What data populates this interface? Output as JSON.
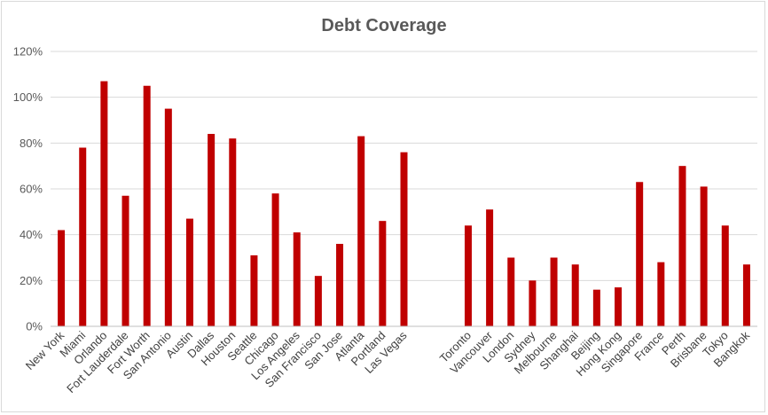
{
  "chart_data": {
    "type": "bar",
    "title": "Debt Coverage",
    "xlabel": "",
    "ylabel": "",
    "ylim": [
      0,
      1.2
    ],
    "yticks": [
      0,
      0.2,
      0.4,
      0.6,
      0.8,
      1.0,
      1.2
    ],
    "ytick_labels": [
      "0%",
      "20%",
      "40%",
      "60%",
      "80%",
      "100%",
      "120%"
    ],
    "grid": true,
    "legend": "none",
    "color": "#c00000",
    "categories": [
      "New York",
      "Miami",
      "Orlando",
      "Fort Lauderdale",
      "Fort Worth",
      "San Antonio",
      "Austin",
      "Dallas",
      "Houston",
      "Seattle",
      "Chicago",
      "Los Angeles",
      "San Francisco",
      "San Jose",
      "Atlanta",
      "Portland",
      "Las Vegas",
      "",
      "",
      "Toronto",
      "Vancouver",
      "London",
      "Sydney",
      "Melbourne",
      "Shanghai",
      "Beijing",
      "Hong Kong",
      "Singapore",
      "France",
      "Perth",
      "Brisbane",
      "Tokyo",
      "Bangkok"
    ],
    "values": [
      0.42,
      0.78,
      1.07,
      0.57,
      1.05,
      0.95,
      0.47,
      0.84,
      0.82,
      0.31,
      0.58,
      0.41,
      0.22,
      0.36,
      0.83,
      0.46,
      0.76,
      null,
      null,
      0.44,
      0.51,
      0.3,
      0.2,
      0.3,
      0.27,
      0.16,
      0.17,
      0.63,
      0.28,
      0.7,
      0.61,
      0.44,
      0.27
    ]
  }
}
